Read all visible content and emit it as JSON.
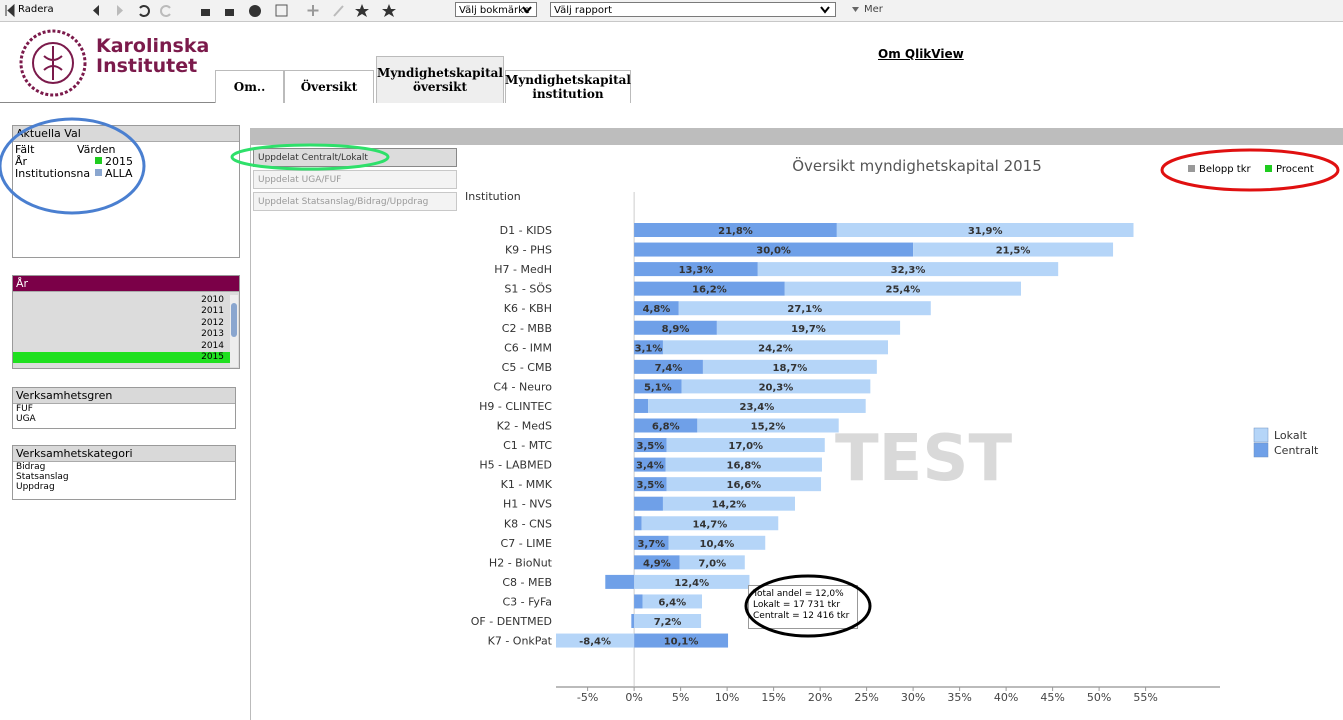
{
  "toolbar": {
    "clear": "Radera",
    "bookmark": "Välj bokmärke",
    "report": "Välj rapport",
    "more": "Mer"
  },
  "header": {
    "logo_line1": "Karolinska",
    "logo_line2": "Institutet",
    "tabs": [
      "Om..",
      "Översikt",
      "Myndighetskapital översikt",
      "Myndighetskapital institution"
    ],
    "link": "Om QlikView"
  },
  "current_selections": {
    "title": "Aktuella Val",
    "columns": [
      "Fält",
      "Värden"
    ],
    "rows": [
      [
        "År",
        "2015"
      ],
      [
        "Institutionsna",
        "ALLA"
      ]
    ]
  },
  "year_list": {
    "title": "År",
    "items": [
      "2010",
      "2011",
      "2012",
      "2013",
      "2014",
      "2015"
    ]
  },
  "verksamhetsgren": {
    "title": "Verksamhetsgren",
    "items": [
      "FUF",
      "UGA"
    ]
  },
  "verksamhetskategori": {
    "title": "Verksamhetskategori",
    "items": [
      "Bidrag",
      "Statsanslag",
      "Uppdrag"
    ]
  },
  "buttons": [
    "Uppdelat Centralt/Lokalt",
    "Uppdelat UGA/FUF",
    "Uppdelat Statsanslag/Bidrag/Uppdrag"
  ],
  "toggles": [
    "Belopp tkr",
    "Procent"
  ],
  "tooltip": {
    "lines": [
      "Total andel = 12,0%",
      "Lokalt = 17 731 tkr",
      "Centralt = 12 416 tkr"
    ]
  },
  "watermark": "TEST",
  "chart_data": {
    "type": "bar",
    "orientation": "horizontal",
    "stacked": true,
    "title": "Översikt myndighetskapital 2015",
    "y_label": "Institution",
    "categories": [
      "D1 - KIDS",
      "K9 - PHS",
      "H7 - MedH",
      "S1 - SÖS",
      "K6 - KBH",
      "C2 - MBB",
      "C6 - IMM",
      "C5 - CMB",
      "C4 - Neuro",
      "H9 - CLINTEC",
      "K2 - MedS",
      "C1 - MTC",
      "H5 - LABMED",
      "K1 - MMK",
      "H1 - NVS",
      "K8 - CNS",
      "C7 - LIME",
      "H2 - BioNut",
      "C8 - MEB",
      "C3 - FyFa",
      "OF - DENTMED",
      "K7 - OnkPat"
    ],
    "series": [
      {
        "name": "Centralt",
        "color": "#6fa0e8",
        "values": [
          21.8,
          30.0,
          13.3,
          16.2,
          4.8,
          8.9,
          3.1,
          7.4,
          5.1,
          1.5,
          6.8,
          3.5,
          3.4,
          3.5,
          3.1,
          0.8,
          3.7,
          4.9,
          -3.1,
          0.9,
          -0.3,
          10.1
        ],
        "value_labels": [
          "21,8%",
          "30,0%",
          "13,3%",
          "16,2%",
          "4,8%",
          "8,9%",
          "3,1%",
          "7,4%",
          "5,1%",
          null,
          "6,8%",
          "3,5%",
          "3,4%",
          "3,5%",
          null,
          null,
          "3,7%",
          "4,9%",
          null,
          null,
          null,
          "10,1%"
        ]
      },
      {
        "name": "Lokalt",
        "color": "#b5d5f8",
        "values": [
          31.9,
          21.5,
          32.3,
          25.4,
          27.1,
          19.7,
          24.2,
          18.7,
          20.3,
          23.4,
          15.2,
          17.0,
          16.8,
          16.6,
          14.2,
          14.7,
          10.4,
          7.0,
          12.4,
          6.4,
          7.2,
          -8.4
        ],
        "value_labels": [
          "31,9%",
          "21,5%",
          "32,3%",
          "25,4%",
          "27,1%",
          "19,7%",
          "24,2%",
          "18,7%",
          "20,3%",
          "23,4%",
          "15,2%",
          "17,0%",
          "16,8%",
          "16,6%",
          "14,2%",
          "14,7%",
          "10,4%",
          "7,0%",
          "12,4%",
          "6,4%",
          "7,2%",
          "-8,4%"
        ]
      }
    ],
    "xlim": [
      -8.4,
      63
    ],
    "xticks": [
      {
        "value": -5,
        "label": "-5%"
      },
      {
        "value": 0,
        "label": "0%"
      },
      {
        "value": 5,
        "label": "5%"
      },
      {
        "value": 10,
        "label": "10%"
      },
      {
        "value": 15,
        "label": "15%"
      },
      {
        "value": 20,
        "label": "20%"
      },
      {
        "value": 25,
        "label": "25%"
      },
      {
        "value": 30,
        "label": "30%"
      },
      {
        "value": 35,
        "label": "35%"
      },
      {
        "value": 40,
        "label": "40%"
      },
      {
        "value": 45,
        "label": "45%"
      },
      {
        "value": 50,
        "label": "50%"
      },
      {
        "value": 55,
        "label": "55%"
      }
    ],
    "legend": "right"
  }
}
